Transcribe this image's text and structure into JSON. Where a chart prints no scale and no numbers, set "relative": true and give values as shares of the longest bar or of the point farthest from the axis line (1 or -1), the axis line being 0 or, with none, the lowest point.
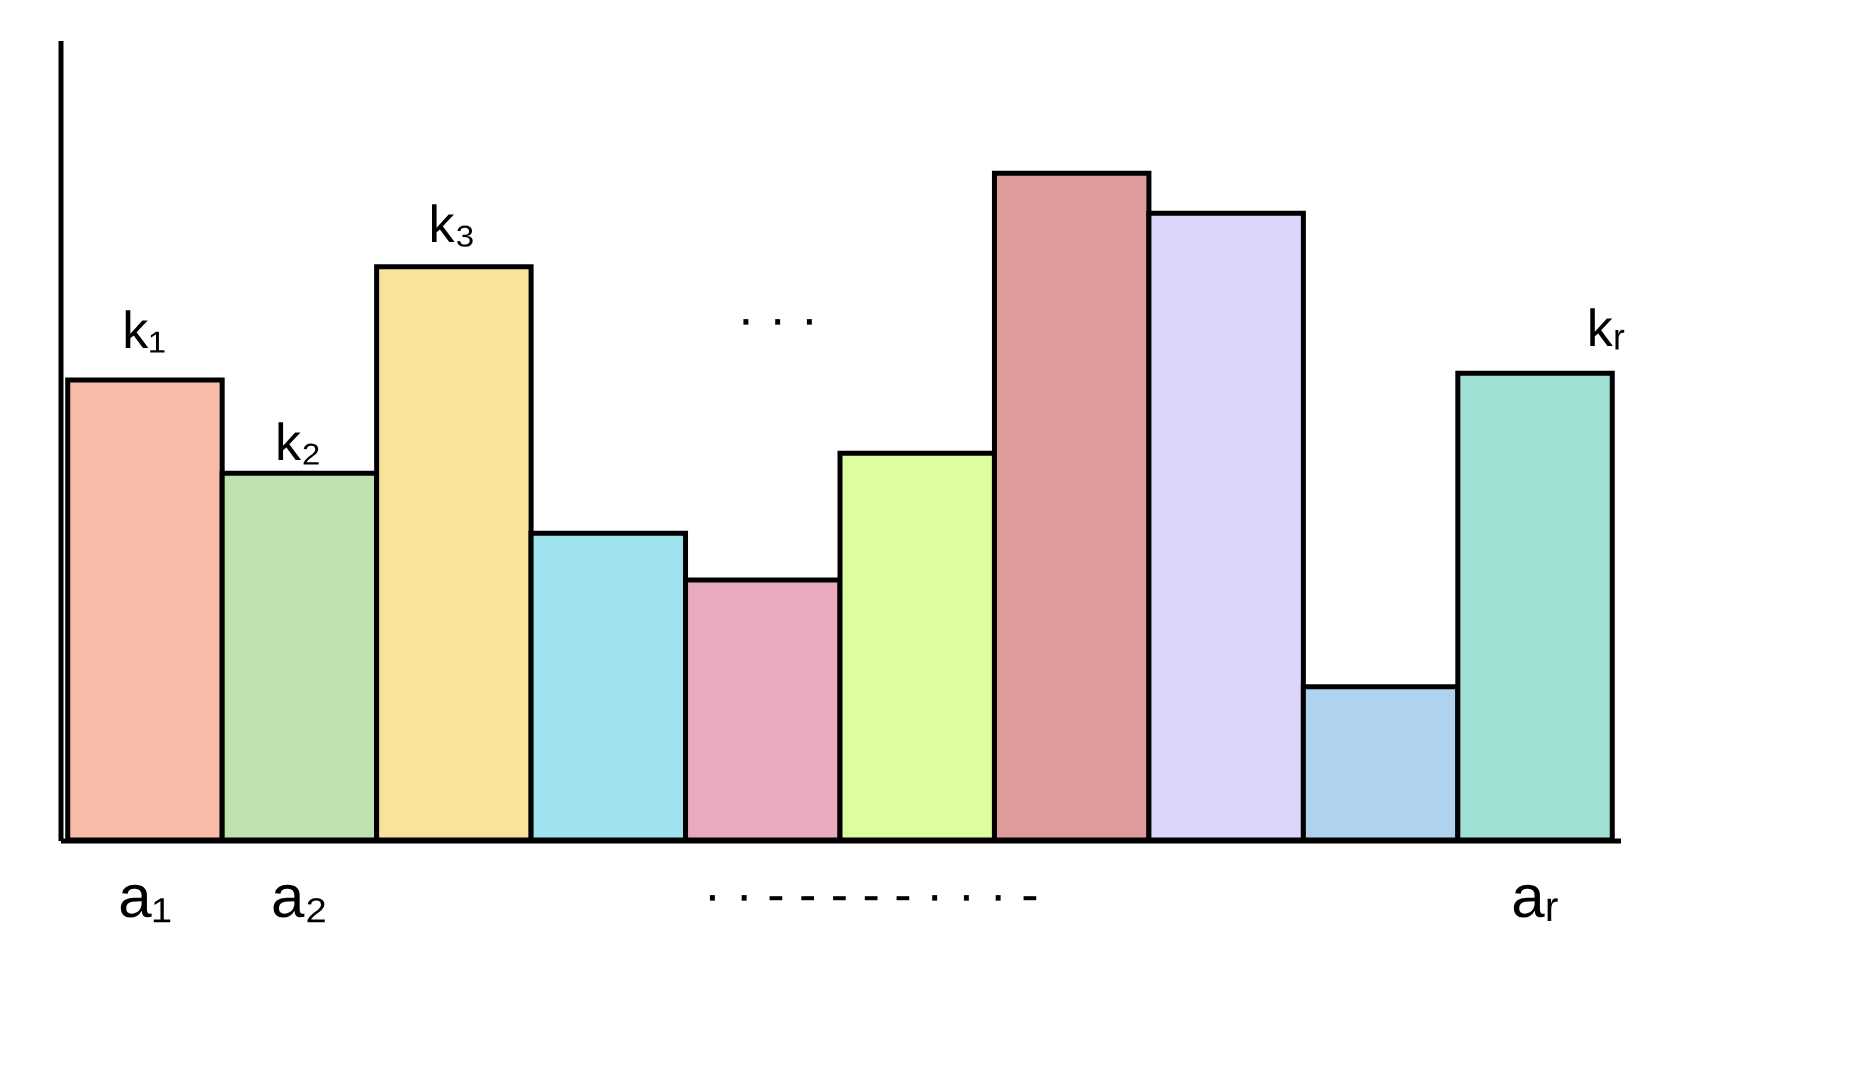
{
  "chart_data": {
    "type": "bar",
    "relative": true,
    "categories": [
      "a₁",
      "a₂",
      null,
      null,
      null,
      null,
      null,
      null,
      null,
      "aᵣ"
    ],
    "values": [
      0.69,
      0.55,
      0.86,
      0.46,
      0.39,
      0.58,
      1,
      0.94,
      0.23,
      0.7
    ],
    "colors": [
      "#f8bba8",
      "#c0e2b0",
      "#f8e39a",
      "#9fe3ee",
      "#e8aabf",
      "#dcfe9e",
      "#df9c9c",
      "#ddd5fc",
      "#afd3ef",
      "#a0dfd3"
    ],
    "annotations": [
      "k₁",
      "k₂",
      "k₃",
      "kᵣ",
      "· · ·",
      "·  ·  -  -  -  -  -  ·  ·  ·  -"
    ]
  }
}
